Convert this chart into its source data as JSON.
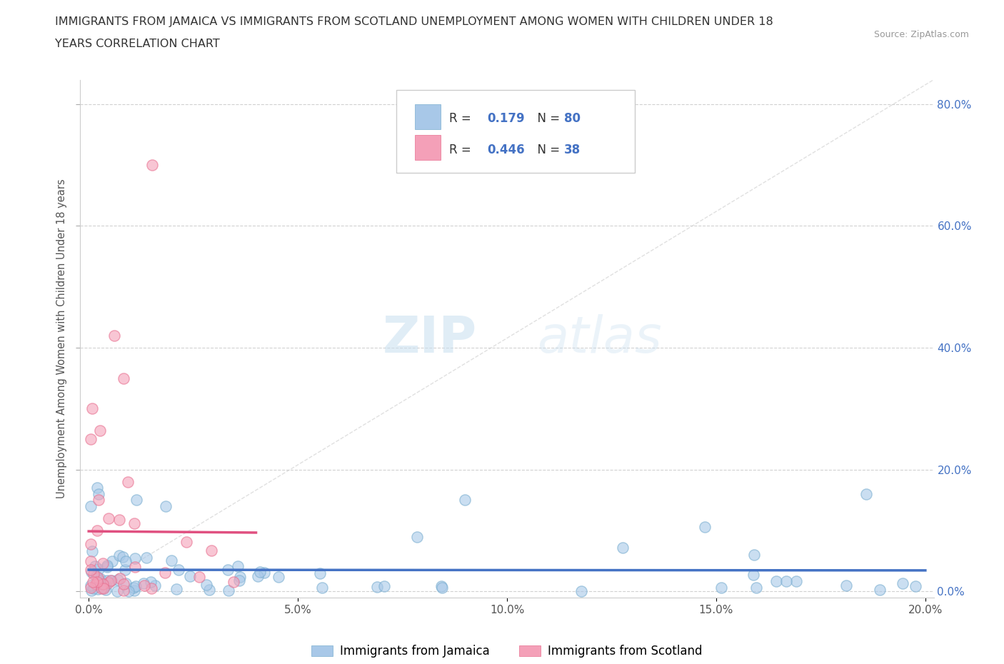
{
  "title_line1": "IMMIGRANTS FROM JAMAICA VS IMMIGRANTS FROM SCOTLAND UNEMPLOYMENT AMONG WOMEN WITH CHILDREN UNDER 18",
  "title_line2": "YEARS CORRELATION CHART",
  "source": "Source: ZipAtlas.com",
  "ylabel": "Unemployment Among Women with Children Under 18 years",
  "xlim": [
    -0.002,
    0.202
  ],
  "ylim": [
    -0.01,
    0.84
  ],
  "xticks": [
    0.0,
    0.05,
    0.1,
    0.15,
    0.2
  ],
  "yticks": [
    0.0,
    0.2,
    0.4,
    0.6,
    0.8
  ],
  "xtick_labels": [
    "0.0%",
    "5.0%",
    "10.0%",
    "15.0%",
    "20.0%"
  ],
  "ytick_labels_right": [
    "0.0%",
    "20.0%",
    "40.0%",
    "60.0%",
    "80.0%"
  ],
  "jamaica_color": "#a8c8e8",
  "scotland_color": "#f4a0b8",
  "jamaica_edge_color": "#7aaed0",
  "scotland_edge_color": "#e87090",
  "jamaica_R": 0.179,
  "jamaica_N": 80,
  "scotland_R": 0.446,
  "scotland_N": 38,
  "watermark_zip": "ZIP",
  "watermark_atlas": "atlas",
  "background_color": "#ffffff",
  "grid_color": "#cccccc",
  "diagonal_color": "#cccccc",
  "jamaica_trend_color": "#4472c4",
  "scotland_trend_color": "#e05080",
  "right_yaxis_color": "#4472c4",
  "legend_frame_color": "#cccccc",
  "title_color": "#333333",
  "ylabel_color": "#555555",
  "xtick_color": "#555555"
}
